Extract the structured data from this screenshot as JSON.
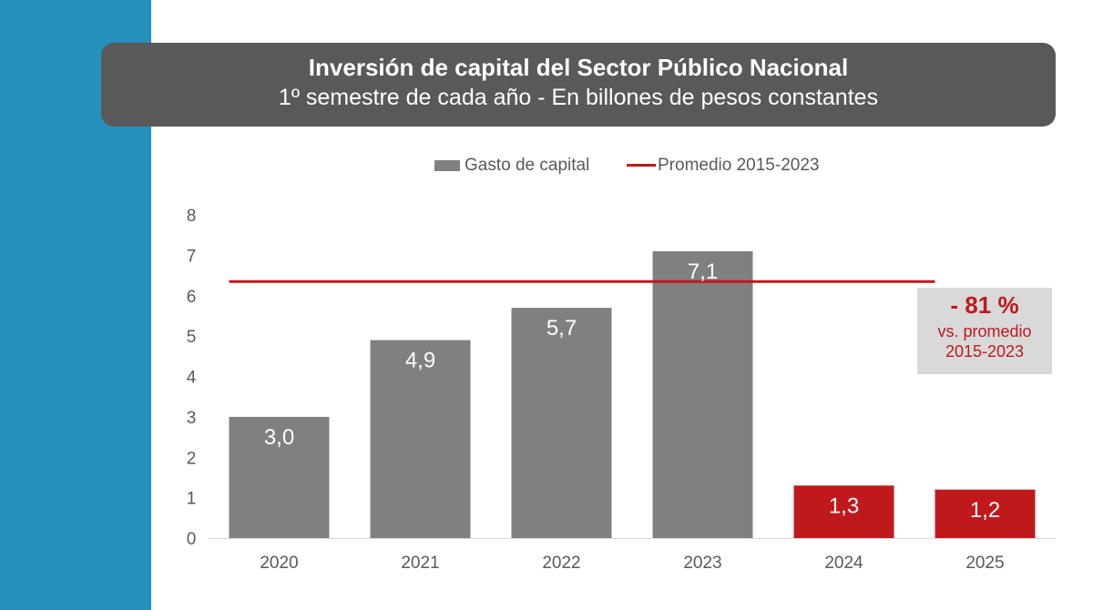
{
  "header": {
    "title": "Inversión de capital del Sector Público Nacional",
    "subtitle": "1º semestre de cada año - En billones de pesos constantes"
  },
  "legend": {
    "bar_label": "Gasto de capital",
    "line_label": "Promedio 2015-2023"
  },
  "callout": {
    "value": "- 81 %",
    "line1": "vs. promedio",
    "line2": "2015-2023"
  },
  "colors": {
    "sidebar": "#2690bd",
    "title_bg": "#595959",
    "bar_gray": "#808080",
    "bar_red": "#c0191c",
    "line_red": "#c0191c",
    "callout_bg": "#d9d9d9"
  },
  "chart_data": {
    "type": "bar",
    "title": "Inversión de capital del Sector Público Nacional",
    "subtitle": "1º semestre de cada año - En billones de pesos constantes",
    "categories": [
      "2020",
      "2021",
      "2022",
      "2023",
      "2024",
      "2025"
    ],
    "values": [
      3.0,
      4.9,
      5.7,
      7.1,
      1.3,
      1.2
    ],
    "value_labels": [
      "3,0",
      "4,9",
      "5,7",
      "7,1",
      "1,3",
      "1,2"
    ],
    "bar_colors": [
      "#808080",
      "#808080",
      "#808080",
      "#808080",
      "#c0191c",
      "#c0191c"
    ],
    "reference_line": {
      "name": "Promedio 2015-2023",
      "value": 6.35,
      "from_category": "2020",
      "to_category": "2025",
      "color": "#c0191c"
    },
    "ylim": [
      0,
      8
    ],
    "yticks": [
      0,
      1,
      2,
      3,
      4,
      5,
      6,
      7,
      8
    ],
    "xlabel": "",
    "ylabel": "",
    "grid": false,
    "legend_position": "top-center"
  }
}
